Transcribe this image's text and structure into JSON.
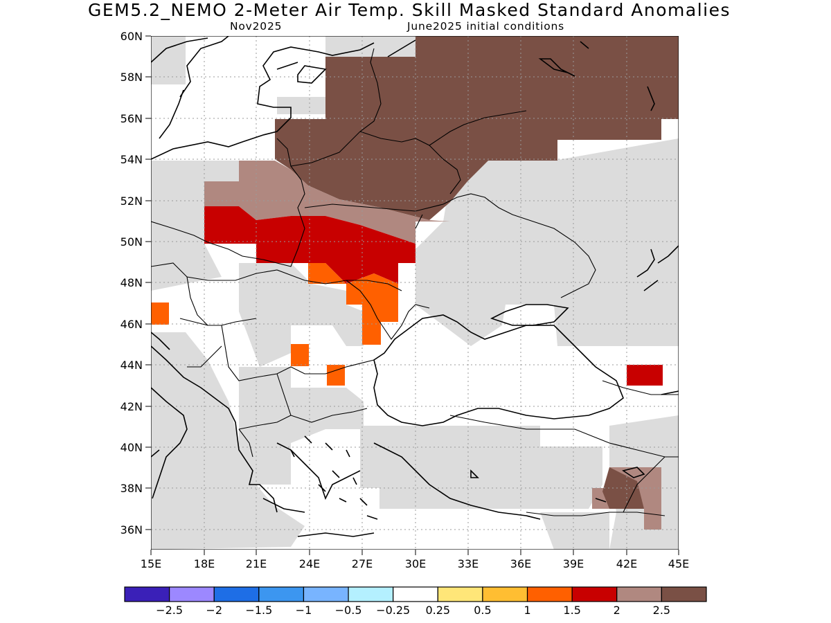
{
  "header": {
    "title": "GEM5.2_NEMO 2-Meter Air Temp. Skill Masked Standard Anomalies",
    "subtitle_left": "Nov2025",
    "subtitle_right": "June2025 initial conditions"
  },
  "map": {
    "lon_range": [
      15,
      45
    ],
    "lat_range": [
      35,
      60
    ],
    "lon_ticks": [
      "15E",
      "18E",
      "21E",
      "24E",
      "27E",
      "30E",
      "33E",
      "36E",
      "39E",
      "42E",
      "45E"
    ],
    "lat_ticks": [
      "36N",
      "38N",
      "40N",
      "42N",
      "44N",
      "46N",
      "48N",
      "50N",
      "52N",
      "54N",
      "56N",
      "58N",
      "60N"
    ],
    "grid": "dotted",
    "land_skill_color": "#dcdcdc",
    "region_colors": {
      "anom_1_1p5": "#ff6000",
      "anom_1p5_2": "#c80000",
      "anom_2_2p5": "#b08880",
      "anom_gt_2p5": "#7a5045"
    }
  },
  "colorbar": {
    "colors": [
      "#3a20b8",
      "#9c88ff",
      "#1e6ee6",
      "#3c96f0",
      "#78b4ff",
      "#b4f0ff",
      "#ffffff",
      "#ffe678",
      "#ffbe32",
      "#ff6000",
      "#c80000",
      "#b08880",
      "#7a5045"
    ],
    "labels": [
      "-2.5",
      "-2",
      "-1.5",
      "-1",
      "-0.5",
      "-0.25",
      "0.25",
      "0.5",
      "1",
      "1.5",
      "2",
      "2.5"
    ]
  }
}
